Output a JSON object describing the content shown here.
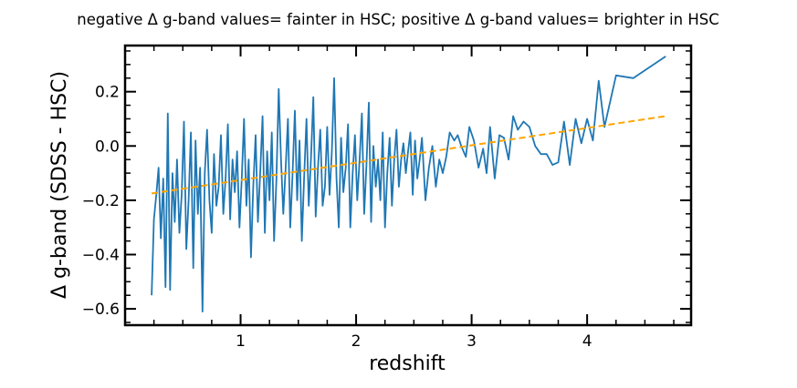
{
  "chart_data": {
    "type": "line",
    "title": "negative Δ g-band values= fainter in HSC; positive Δ g-band values= brighter in HSC",
    "xlabel": "redshift",
    "ylabel": "Δ g-band (SDSS - HSC)",
    "xlim": [
      0.0,
      4.9
    ],
    "ylim": [
      -0.66,
      0.37
    ],
    "xticks": [
      1,
      2,
      3,
      4
    ],
    "xtick_labels": [
      "1",
      "2",
      "3",
      "4"
    ],
    "yticks": [
      -0.6,
      -0.4,
      -0.2,
      0.0,
      0.2
    ],
    "ytick_labels": [
      "−0.6",
      "−0.4",
      "−0.2",
      "0.0",
      "0.2"
    ],
    "grid": false,
    "legend": "none",
    "series": [
      {
        "style": "solid",
        "color": "#1f77b4",
        "x": [
          0.23,
          0.25,
          0.27,
          0.29,
          0.31,
          0.33,
          0.35,
          0.37,
          0.39,
          0.41,
          0.43,
          0.45,
          0.47,
          0.49,
          0.51,
          0.53,
          0.55,
          0.57,
          0.59,
          0.61,
          0.63,
          0.65,
          0.67,
          0.69,
          0.71,
          0.73,
          0.75,
          0.77,
          0.79,
          0.81,
          0.83,
          0.85,
          0.87,
          0.89,
          0.91,
          0.93,
          0.95,
          0.97,
          0.99,
          1.01,
          1.03,
          1.05,
          1.07,
          1.09,
          1.11,
          1.13,
          1.15,
          1.17,
          1.19,
          1.21,
          1.23,
          1.25,
          1.27,
          1.29,
          1.31,
          1.33,
          1.35,
          1.37,
          1.39,
          1.41,
          1.43,
          1.45,
          1.47,
          1.49,
          1.51,
          1.53,
          1.55,
          1.57,
          1.59,
          1.61,
          1.63,
          1.65,
          1.67,
          1.69,
          1.71,
          1.73,
          1.75,
          1.77,
          1.79,
          1.81,
          1.83,
          1.85,
          1.87,
          1.89,
          1.91,
          1.93,
          1.95,
          1.97,
          1.99,
          2.01,
          2.03,
          2.05,
          2.07,
          2.09,
          2.11,
          2.13,
          2.15,
          2.17,
          2.19,
          2.21,
          2.23,
          2.25,
          2.27,
          2.29,
          2.31,
          2.33,
          2.35,
          2.37,
          2.39,
          2.41,
          2.43,
          2.45,
          2.47,
          2.49,
          2.51,
          2.53,
          2.55,
          2.57,
          2.6,
          2.63,
          2.66,
          2.69,
          2.72,
          2.75,
          2.78,
          2.81,
          2.85,
          2.88,
          2.91,
          2.95,
          2.98,
          3.02,
          3.06,
          3.1,
          3.13,
          3.16,
          3.2,
          3.24,
          3.28,
          3.32,
          3.36,
          3.4,
          3.45,
          3.5,
          3.55,
          3.6,
          3.65,
          3.7,
          3.75,
          3.8,
          3.85,
          3.9,
          3.95,
          4.0,
          4.05,
          4.1,
          4.15,
          4.25,
          4.4,
          4.68
        ],
        "y": [
          -0.55,
          -0.27,
          -0.18,
          -0.08,
          -0.34,
          -0.12,
          -0.52,
          0.12,
          -0.53,
          -0.1,
          -0.28,
          -0.05,
          -0.32,
          -0.18,
          0.09,
          -0.38,
          -0.2,
          0.05,
          -0.45,
          0.02,
          -0.25,
          -0.08,
          -0.61,
          -0.1,
          0.06,
          -0.2,
          -0.32,
          -0.03,
          -0.22,
          -0.15,
          0.04,
          -0.25,
          -0.12,
          0.08,
          -0.27,
          -0.05,
          -0.17,
          -0.02,
          -0.3,
          -0.12,
          0.1,
          -0.22,
          -0.05,
          -0.41,
          -0.15,
          0.04,
          -0.28,
          -0.1,
          0.11,
          -0.32,
          -0.02,
          -0.2,
          0.05,
          -0.35,
          -0.12,
          0.21,
          -0.05,
          -0.25,
          -0.08,
          0.1,
          -0.3,
          -0.1,
          0.13,
          -0.2,
          0.02,
          -0.35,
          -0.12,
          0.1,
          -0.22,
          -0.04,
          0.18,
          -0.26,
          -0.08,
          0.06,
          -0.22,
          -0.15,
          0.07,
          -0.18,
          -0.02,
          0.25,
          -0.12,
          -0.3,
          0.03,
          -0.17,
          -0.08,
          0.08,
          -0.3,
          -0.1,
          0.04,
          -0.2,
          -0.05,
          0.12,
          -0.25,
          -0.07,
          0.16,
          -0.28,
          0.0,
          -0.15,
          -0.05,
          -0.2,
          0.05,
          -0.3,
          -0.1,
          0.03,
          -0.22,
          -0.05,
          0.06,
          -0.15,
          -0.05,
          0.01,
          -0.1,
          -0.02,
          0.05,
          -0.18,
          0.02,
          -0.12,
          -0.05,
          0.03,
          -0.2,
          -0.08,
          0.0,
          -0.15,
          -0.05,
          -0.1,
          -0.04,
          0.05,
          0.02,
          0.04,
          0.0,
          -0.04,
          0.07,
          0.02,
          -0.08,
          -0.01,
          -0.1,
          0.07,
          -0.12,
          0.04,
          0.03,
          -0.05,
          0.11,
          0.06,
          0.09,
          0.07,
          0.0,
          -0.03,
          -0.03,
          -0.07,
          -0.06,
          0.09,
          -0.07,
          0.1,
          0.01,
          0.1,
          0.02,
          0.24,
          0.07,
          0.26,
          0.25,
          0.33
        ]
      },
      {
        "style": "dashed",
        "color": "#ffa500",
        "x": [
          0.23,
          4.68
        ],
        "y": [
          -0.175,
          0.11
        ]
      }
    ]
  }
}
